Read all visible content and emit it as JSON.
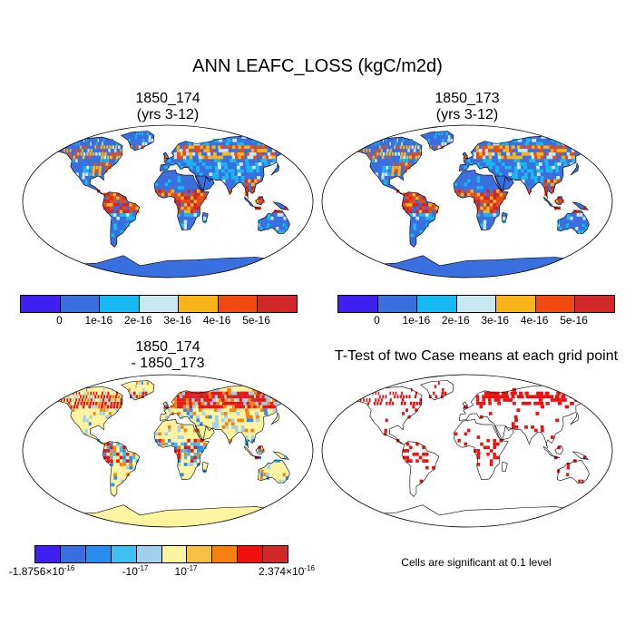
{
  "title": "ANN LEAFC_LOSS (kgC/m2d)",
  "panels": {
    "top_left": {
      "title_line1": "1850_174",
      "title_line2": "(yrs 3-12)"
    },
    "top_right": {
      "title_line1": "1850_173",
      "title_line2": "(yrs 3-12)"
    },
    "bottom_left": {
      "title_line1": "1850_174",
      "title_line2": "- 1850_173"
    },
    "bottom_right": {
      "title_line1": "T-Test of two Case means at each grid point",
      "note": "Cells are significant at 0.1 level"
    }
  },
  "colorbar_top": {
    "colors": [
      "#4020f0",
      "#3a6fe0",
      "#18b8f0",
      "#c8e8f4",
      "#f8b418",
      "#f04a10",
      "#d02828"
    ],
    "labels": [
      "0",
      "1e-16",
      "2e-16",
      "3e-16",
      "4e-16",
      "5e-16"
    ]
  },
  "colorbar_bottom": {
    "colors": [
      "#4020f0",
      "#3a6fe0",
      "#2a8cf0",
      "#40c0f0",
      "#a0d0ec",
      "#fff4a0",
      "#f8c040",
      "#f88010",
      "#f01010",
      "#d02828"
    ],
    "labels": {
      "min_mantissa": "-1.8756×10",
      "min_exp": "-16",
      "neg_mantissa": "-10",
      "neg_exp": "-17",
      "pos_mantissa": "10",
      "pos_exp": "-17",
      "max_mantissa": "2.374×10",
      "max_exp": "-16"
    }
  },
  "colors": {
    "ocean": "#ffffff",
    "land_base_top": "#3a6fe0",
    "land_base_diff": "#fff4a0",
    "significant": "#ee1010",
    "antarctica_top": "#3a6fe0",
    "antarctica_diff": "#fff4a0"
  }
}
